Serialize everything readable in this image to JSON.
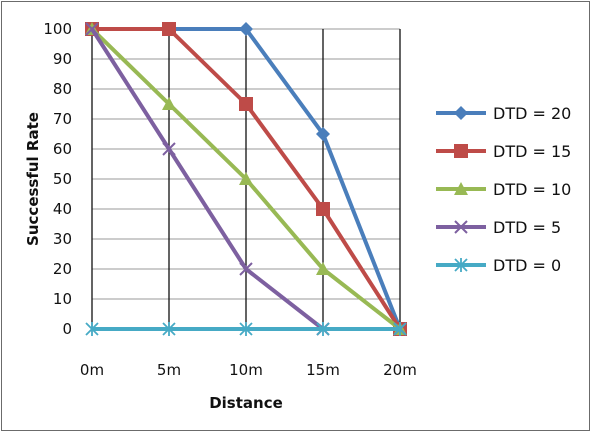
{
  "chart_data": {
    "type": "line",
    "title": "",
    "xlabel": "Distance",
    "ylabel": "Successful  Rate",
    "categories": [
      "0m",
      "5m",
      "10m",
      "15m",
      "20m"
    ],
    "ylim": [
      0,
      100
    ],
    "yticks": [
      0,
      10,
      20,
      30,
      40,
      50,
      60,
      70,
      80,
      90,
      100
    ],
    "grid": true,
    "legend_position": "right",
    "series": [
      {
        "name": "DTD = 20",
        "values": [
          100,
          100,
          100,
          65,
          0
        ],
        "color": "#4a7ebb",
        "marker": "diamond"
      },
      {
        "name": "DTD = 15",
        "values": [
          100,
          100,
          75,
          40,
          0
        ],
        "color": "#be4b48",
        "marker": "square"
      },
      {
        "name": "DTD = 10",
        "values": [
          100,
          75,
          50,
          20,
          0
        ],
        "color": "#98b954",
        "marker": "triangle"
      },
      {
        "name": "DTD = 5",
        "values": [
          100,
          60,
          20,
          0,
          0
        ],
        "color": "#7d60a0",
        "marker": "x"
      },
      {
        "name": "DTD = 0",
        "values": [
          0,
          0,
          0,
          0,
          0
        ],
        "color": "#46aac5",
        "marker": "star"
      }
    ]
  }
}
